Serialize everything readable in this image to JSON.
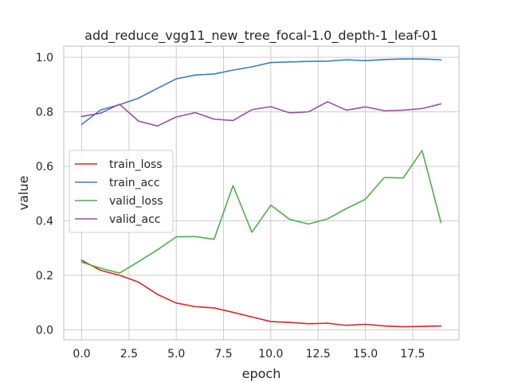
{
  "chart_data": {
    "type": "line",
    "title": "add_reduce_vgg11_new_tree_focal-1.0_depth-1_leaf-01",
    "xlabel": "epoch",
    "ylabel": "value",
    "xlim": [
      -0.95,
      19.95
    ],
    "ylim": [
      -0.037,
      1.041
    ],
    "xticks": [
      0.0,
      2.5,
      5.0,
      7.5,
      10.0,
      12.5,
      15.0,
      17.5
    ],
    "xtick_labels": [
      "0.0",
      "2.5",
      "5.0",
      "7.5",
      "10.0",
      "12.5",
      "15.0",
      "17.5"
    ],
    "yticks": [
      0.0,
      0.2,
      0.4,
      0.6,
      0.8,
      1.0
    ],
    "ytick_labels": [
      "0.0",
      "0.2",
      "0.4",
      "0.6",
      "0.8",
      "1.0"
    ],
    "grid": true,
    "legend_position": "center-left",
    "x": [
      0,
      1,
      2,
      3,
      4,
      5,
      6,
      7,
      8,
      9,
      10,
      11,
      12,
      13,
      14,
      15,
      16,
      17,
      18,
      19
    ],
    "series": [
      {
        "name": "train_loss",
        "color": "#d62728",
        "values": [
          0.255,
          0.218,
          0.2,
          0.175,
          0.13,
          0.098,
          0.085,
          0.08,
          0.064,
          0.047,
          0.03,
          0.027,
          0.022,
          0.024,
          0.016,
          0.02,
          0.014,
          0.011,
          0.012,
          0.014
        ]
      },
      {
        "name": "train_acc",
        "color": "#3a7dc1",
        "values": [
          0.754,
          0.807,
          0.826,
          0.85,
          0.886,
          0.921,
          0.935,
          0.939,
          0.953,
          0.965,
          0.981,
          0.983,
          0.985,
          0.986,
          0.991,
          0.988,
          0.992,
          0.994,
          0.994,
          0.991
        ]
      },
      {
        "name": "valid_loss",
        "color": "#4daf4a",
        "values": [
          0.248,
          0.226,
          0.208,
          0.25,
          0.293,
          0.341,
          0.342,
          0.332,
          0.529,
          0.358,
          0.457,
          0.405,
          0.388,
          0.407,
          0.445,
          0.479,
          0.559,
          0.557,
          0.658,
          0.393
        ]
      },
      {
        "name": "valid_acc",
        "color": "#984ea3",
        "values": [
          0.783,
          0.795,
          0.828,
          0.766,
          0.748,
          0.781,
          0.797,
          0.773,
          0.768,
          0.808,
          0.819,
          0.796,
          0.8,
          0.837,
          0.806,
          0.818,
          0.804,
          0.806,
          0.812,
          0.829
        ]
      }
    ]
  }
}
